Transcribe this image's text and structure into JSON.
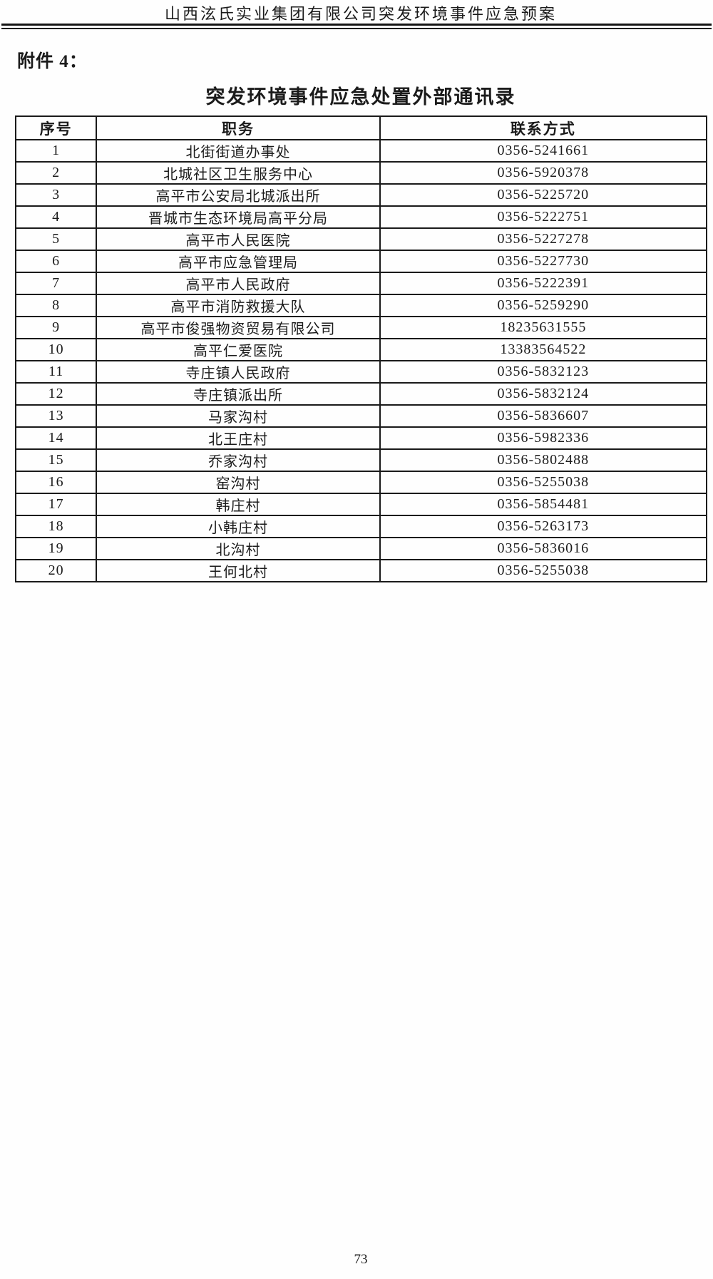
{
  "page": {
    "header": "山西泫氏实业集团有限公司突发环境事件应急预案",
    "attachment_label": "附件 4：",
    "page_number": "73"
  },
  "table": {
    "title": "突发环境事件应急处置外部通讯录",
    "columns": [
      "序号",
      "职务",
      "联系方式"
    ],
    "rows": [
      {
        "no": "1",
        "title": "北街街道办事处",
        "contact": "0356-5241661"
      },
      {
        "no": "2",
        "title": "北城社区卫生服务中心",
        "contact": "0356-5920378"
      },
      {
        "no": "3",
        "title": "高平市公安局北城派出所",
        "contact": "0356-5225720"
      },
      {
        "no": "4",
        "title": "晋城市生态环境局高平分局",
        "contact": "0356-5222751"
      },
      {
        "no": "5",
        "title": "高平市人民医院",
        "contact": "0356-5227278"
      },
      {
        "no": "6",
        "title": "高平市应急管理局",
        "contact": "0356-5227730"
      },
      {
        "no": "7",
        "title": "高平市人民政府",
        "contact": "0356-5222391"
      },
      {
        "no": "8",
        "title": "高平市消防救援大队",
        "contact": "0356-5259290"
      },
      {
        "no": "9",
        "title": "高平市俊强物资贸易有限公司",
        "contact": "18235631555"
      },
      {
        "no": "10",
        "title": "高平仁爱医院",
        "contact": "13383564522"
      },
      {
        "no": "11",
        "title": "寺庄镇人民政府",
        "contact": "0356-5832123"
      },
      {
        "no": "12",
        "title": "寺庄镇派出所",
        "contact": "0356-5832124"
      },
      {
        "no": "13",
        "title": "马家沟村",
        "contact": "0356-5836607"
      },
      {
        "no": "14",
        "title": "北王庄村",
        "contact": "0356-5982336"
      },
      {
        "no": "15",
        "title": "乔家沟村",
        "contact": "0356-5802488"
      },
      {
        "no": "16",
        "title": "窑沟村",
        "contact": "0356-5255038"
      },
      {
        "no": "17",
        "title": "韩庄村",
        "contact": "0356-5854481"
      },
      {
        "no": "18",
        "title": "小韩庄村",
        "contact": "0356-5263173"
      },
      {
        "no": "19",
        "title": "北沟村",
        "contact": "0356-5836016"
      },
      {
        "no": "20",
        "title": "王何北村",
        "contact": "0356-5255038"
      }
    ]
  }
}
